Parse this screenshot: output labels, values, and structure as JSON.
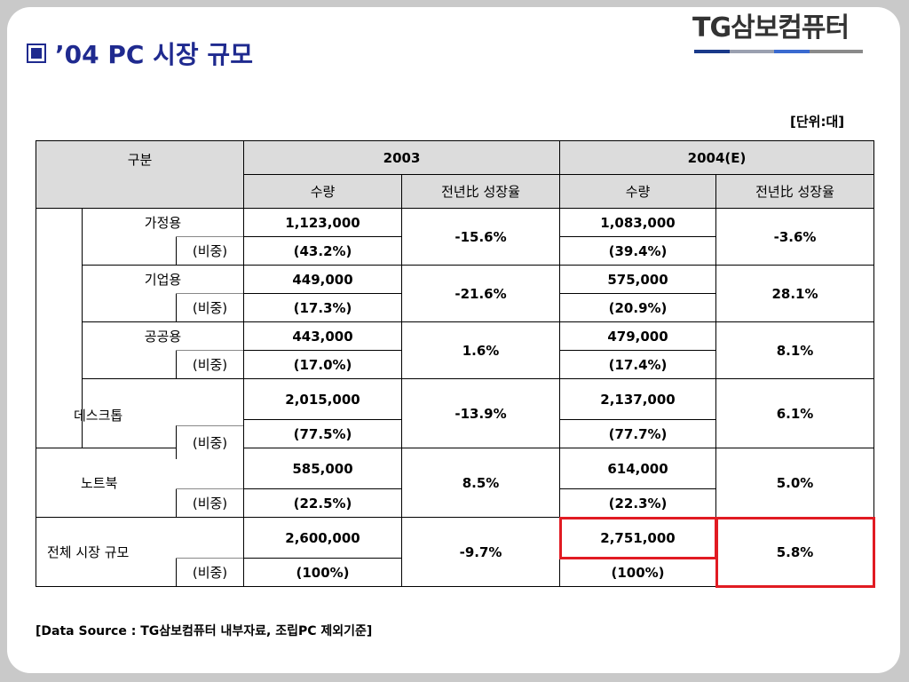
{
  "title": "’04 PC 시장 규모",
  "logo": {
    "text": "TG삼보컴퓨터",
    "bar_colors": [
      "#1a3a8a",
      "#9aa0b0",
      "#3a6ad0",
      "#8a8a8a"
    ]
  },
  "unit": "[단위:대]",
  "table": {
    "header": {
      "category": "구분",
      "year1": "2003",
      "year2": "2004(E)",
      "qty": "수량",
      "growth": "전년比 성장율"
    },
    "ratio_label": "(비중)",
    "desktop_sub": [
      {
        "label": "가정용",
        "qty_2003": "1,123,000",
        "share_2003": "(43.2%)",
        "growth_2003": "-15.6%",
        "qty_2004": "1,083,000",
        "share_2004": "(39.4%)",
        "growth_2004": "-3.6%"
      },
      {
        "label": "기업용",
        "qty_2003": "449,000",
        "share_2003": "(17.3%)",
        "growth_2003": "-21.6%",
        "qty_2004": "575,000",
        "share_2004": "(20.9%)",
        "growth_2004": "28.1%"
      },
      {
        "label": "공공용",
        "qty_2003": "443,000",
        "share_2003": "(17.0%)",
        "growth_2003": "1.6%",
        "qty_2004": "479,000",
        "share_2004": "(17.4%)",
        "growth_2004": "8.1%"
      }
    ],
    "groups": [
      {
        "label": "데스크톱",
        "qty_2003": "2,015,000",
        "share_2003": "(77.5%)",
        "growth_2003": "-13.9%",
        "qty_2004": "2,137,000",
        "share_2004": "(77.7%)",
        "growth_2004": "6.1%"
      },
      {
        "label": "노트북",
        "qty_2003": "585,000",
        "share_2003": "(22.5%)",
        "growth_2003": "8.5%",
        "qty_2004": "614,000",
        "share_2004": "(22.3%)",
        "growth_2004": "5.0%"
      },
      {
        "label": "전체 시장 규모",
        "qty_2003": "2,600,000",
        "share_2003": "(100%)",
        "growth_2003": "-9.7%",
        "qty_2004": "2,751,000",
        "share_2004": "(100%)",
        "growth_2004": "5.8%"
      }
    ]
  },
  "source": "[Data Source : TG삼보컴퓨터 내부자료, 조립PC 제외기준]"
}
